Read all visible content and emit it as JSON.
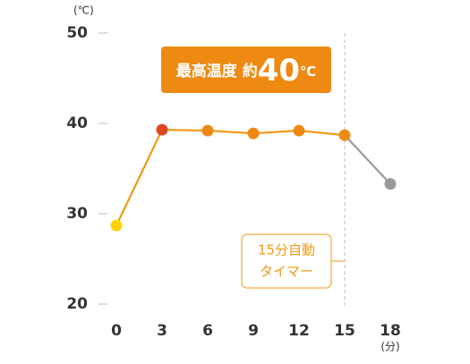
{
  "chart_data": {
    "type": "line",
    "unit_y": "(℃)",
    "unit_x": "(分)",
    "x": [
      0,
      3,
      6,
      9,
      12,
      15,
      18
    ],
    "xlim": [
      0,
      18
    ],
    "xticks": [
      0,
      3,
      6,
      9,
      12,
      15,
      18
    ],
    "ylim": [
      20,
      50
    ],
    "yticks": [
      20,
      30,
      40,
      50
    ],
    "series": [
      {
        "values": [
          28.7,
          39.3,
          39.2,
          38.9,
          39.2,
          38.7,
          33.3
        ],
        "point_colors": [
          "#ffd400",
          "#e0461c",
          "#ee8a12",
          "#ee8a12",
          "#ee8a12",
          "#ee8a12",
          "#9a9a9a"
        ],
        "line_colors": [
          "#ee9a16",
          "#ee9a16",
          "#ee9a16",
          "#ee9a16",
          "#ee9a16",
          "#9a9a9a"
        ]
      }
    ],
    "badge": {
      "text": "最高温度 約",
      "number": "40",
      "unit": "℃",
      "color": "#ee8a12"
    },
    "timer": {
      "x": 15,
      "lines": [
        "15分自動",
        "タイマー"
      ],
      "color": "#ee9a16"
    }
  }
}
